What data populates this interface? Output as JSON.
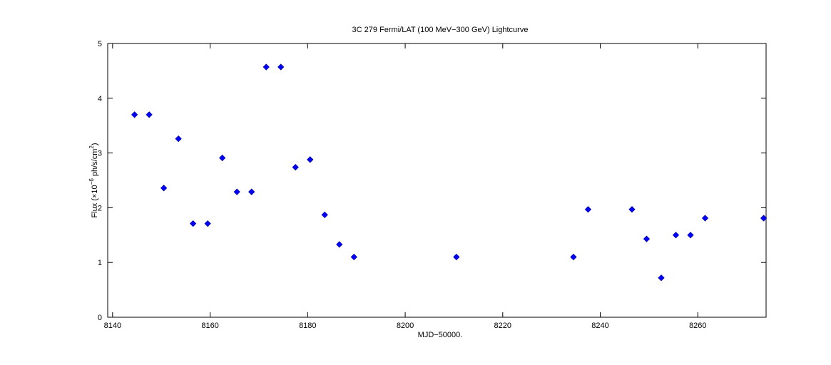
{
  "chart_data": {
    "type": "scatter",
    "title": "3C 279 Fermi/LAT (100 MeV−300 GeV) Lightcurve",
    "xlabel": "MJD−50000.",
    "ylabel": {
      "prefix": "Flux (×10",
      "exponent": "−6",
      "middle": " ph/s/cm",
      "unit_exponent": "2",
      "suffix": ")"
    },
    "xlim": [
      8139,
      8274
    ],
    "ylim": [
      0,
      5
    ],
    "xticks": [
      {
        "value": 8140,
        "label": "8140"
      },
      {
        "value": 8160,
        "label": "8160"
      },
      {
        "value": 8180,
        "label": "8180"
      },
      {
        "value": 8200,
        "label": "8200"
      },
      {
        "value": 8220,
        "label": "8220"
      },
      {
        "value": 8240,
        "label": "8240"
      },
      {
        "value": 8260,
        "label": "8260"
      }
    ],
    "yticks": [
      {
        "value": 0,
        "label": "0"
      },
      {
        "value": 1,
        "label": "1"
      },
      {
        "value": 2,
        "label": "2"
      },
      {
        "value": 3,
        "label": "3"
      },
      {
        "value": 4,
        "label": "4"
      },
      {
        "value": 5,
        "label": "5"
      }
    ],
    "grid": false,
    "marker": "diamond",
    "color": "#0000ff",
    "series": [
      {
        "points": [
          {
            "x": 8144.5,
            "y": 3.7
          },
          {
            "x": 8147.5,
            "y": 3.7
          },
          {
            "x": 8150.5,
            "y": 2.36
          },
          {
            "x": 8153.5,
            "y": 3.26
          },
          {
            "x": 8156.5,
            "y": 1.71
          },
          {
            "x": 8159.5,
            "y": 1.71
          },
          {
            "x": 8162.5,
            "y": 2.91
          },
          {
            "x": 8165.5,
            "y": 2.29
          },
          {
            "x": 8168.5,
            "y": 2.29
          },
          {
            "x": 8171.5,
            "y": 4.57
          },
          {
            "x": 8174.5,
            "y": 4.57
          },
          {
            "x": 8177.5,
            "y": 2.74
          },
          {
            "x": 8180.5,
            "y": 2.88
          },
          {
            "x": 8183.5,
            "y": 1.87
          },
          {
            "x": 8186.5,
            "y": 1.33
          },
          {
            "x": 8189.5,
            "y": 1.1
          },
          {
            "x": 8210.5,
            "y": 1.1
          },
          {
            "x": 8234.5,
            "y": 1.1
          },
          {
            "x": 8237.5,
            "y": 1.97
          },
          {
            "x": 8246.5,
            "y": 1.97
          },
          {
            "x": 8249.5,
            "y": 1.43
          },
          {
            "x": 8252.5,
            "y": 0.72
          },
          {
            "x": 8255.5,
            "y": 1.5
          },
          {
            "x": 8258.5,
            "y": 1.5
          },
          {
            "x": 8261.5,
            "y": 1.81
          },
          {
            "x": 8273.5,
            "y": 1.81
          }
        ]
      }
    ]
  }
}
